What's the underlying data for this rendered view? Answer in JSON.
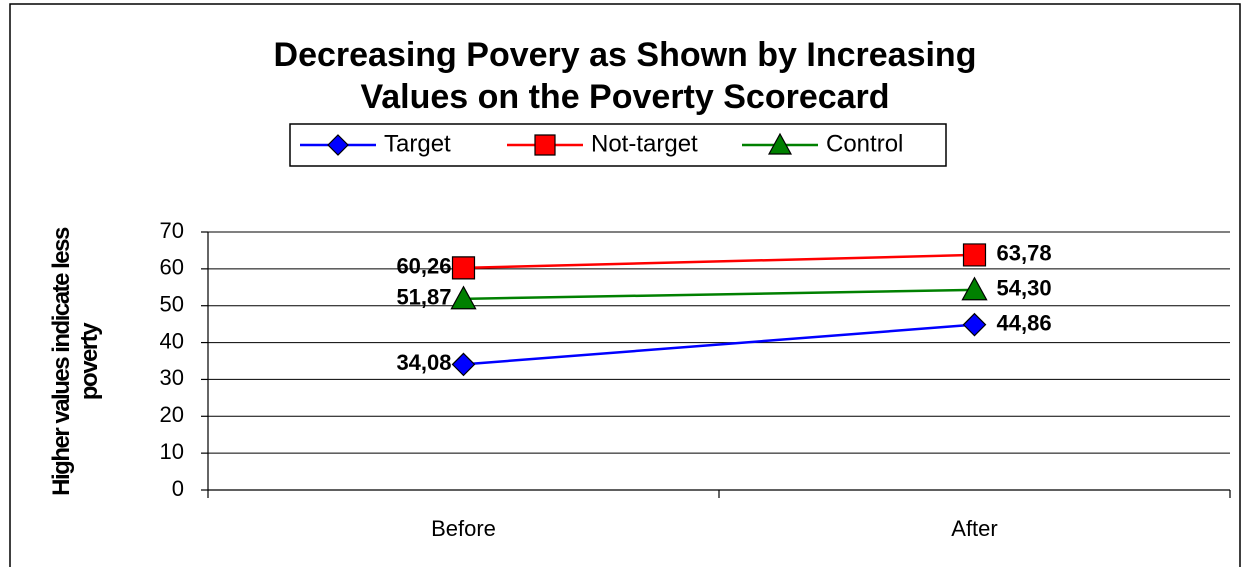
{
  "chart_data": {
    "type": "line",
    "title": "Decreasing Povery as Shown by Increasing Values on the Poverty Scorecard",
    "y_label": "Higher values indicate less poverty",
    "categories": [
      "Before",
      "After"
    ],
    "series": [
      {
        "name": "Target",
        "color": "#0000ff",
        "marker": "diamond",
        "values": [
          34.08,
          44.86
        ],
        "value_labels": [
          "34,08",
          "44,86"
        ]
      },
      {
        "name": "Not-target",
        "color": "#ff0000",
        "marker": "square",
        "values": [
          60.26,
          63.78
        ],
        "value_labels": [
          "60,26",
          "63,78"
        ]
      },
      {
        "name": "Control",
        "color": "#008000",
        "marker": "triangle",
        "values": [
          51.87,
          54.3
        ],
        "value_labels": [
          "51,87",
          "54,30"
        ]
      }
    ],
    "ylim": [
      0,
      70
    ],
    "yticks": [
      0,
      10,
      20,
      30,
      40,
      50,
      60,
      70
    ],
    "grid": true,
    "legend": "top"
  }
}
